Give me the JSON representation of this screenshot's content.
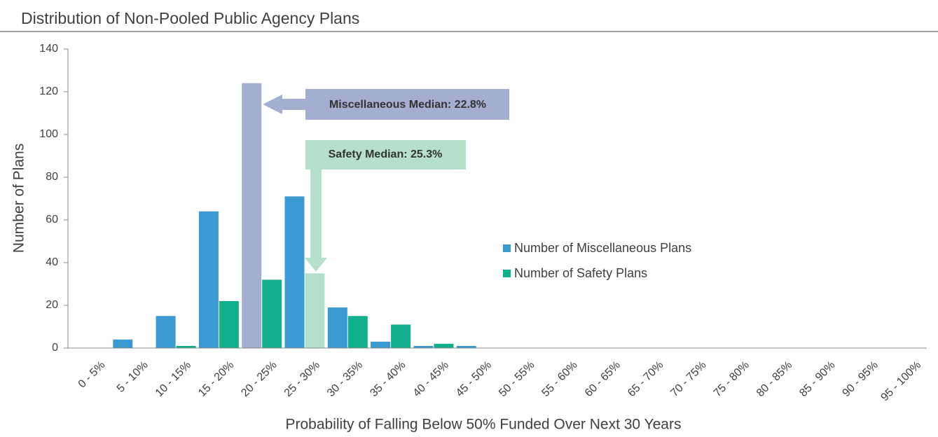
{
  "chart_data": {
    "type": "bar",
    "title": "Distribution of Non-Pooled Public Agency Plans",
    "x_label": "Probability of Falling Below 50% Funded Over Next 30 Years",
    "y_label": "Number of Plans",
    "categories": [
      "0 - 5%",
      "5 - 10%",
      "10 - 15%",
      "15 - 20%",
      "20 - 25%",
      "25 - 30%",
      "30 - 35%",
      "35 - 40%",
      "40 - 45%",
      "45 - 50%",
      "50 - 55%",
      "55 - 60%",
      "60 - 65%",
      "65 - 70%",
      "70 - 75%",
      "75 - 80%",
      "80 - 85%",
      "85 - 90%",
      "90 - 95%",
      "95 - 100%"
    ],
    "series": [
      {
        "name": "Number of Miscellaneous Plans",
        "color": "#3a9ad1",
        "colors": [
          "#3a9ad1",
          "#3a9ad1",
          "#3a9ad1",
          "#3a9ad1",
          "#a3aed0",
          "#3a9ad1",
          "#3a9ad1",
          "#3a9ad1",
          "#3a9ad1",
          "#3a9ad1",
          "#3a9ad1",
          "#3a9ad1",
          "#3a9ad1",
          "#3a9ad1",
          "#3a9ad1",
          "#3a9ad1",
          "#3a9ad1",
          "#3a9ad1",
          "#3a9ad1",
          "#3a9ad1"
        ],
        "values": [
          0,
          4,
          15,
          64,
          124,
          71,
          19,
          3,
          1,
          1,
          0,
          0,
          0,
          0,
          0,
          0,
          0,
          0,
          0,
          0
        ]
      },
      {
        "name": "Number of Safety Plans",
        "color": "#10b08c",
        "colors": [
          "#10b08c",
          "#10b08c",
          "#10b08c",
          "#10b08c",
          "#10b08c",
          "#b4e0cc",
          "#10b08c",
          "#10b08c",
          "#10b08c",
          "#10b08c",
          "#10b08c",
          "#10b08c",
          "#10b08c",
          "#10b08c",
          "#10b08c",
          "#10b08c",
          "#10b08c",
          "#10b08c",
          "#10b08c",
          "#10b08c"
        ],
        "values": [
          0,
          0,
          1,
          22,
          32,
          35,
          15,
          11,
          2,
          0,
          0,
          0,
          0,
          0,
          0,
          0,
          0,
          0,
          0,
          0
        ]
      }
    ],
    "annotations": [
      {
        "text": "Miscellaneous Median: 22.8%",
        "color": "#a3aed0"
      },
      {
        "text": "Safety Median: 25.3%",
        "color": "#b4e0cc"
      }
    ],
    "ylim": [
      0,
      140
    ],
    "yticks": [
      0,
      20,
      40,
      60,
      80,
      100,
      120,
      140
    ],
    "grid": false
  }
}
